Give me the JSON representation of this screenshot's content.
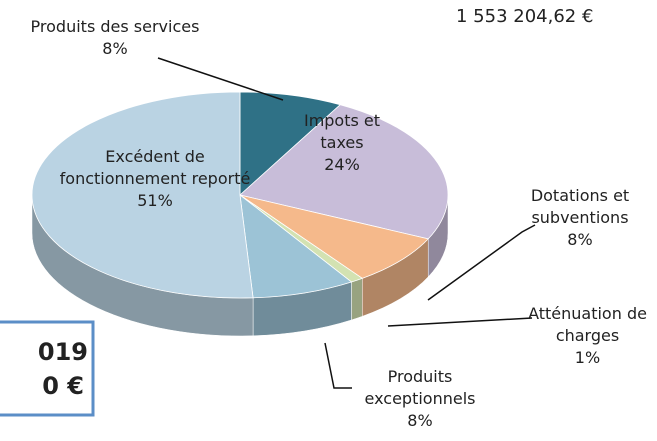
{
  "chart_data": {
    "type": "pie",
    "categories": [
      "Produits des services",
      "Impots et taxes",
      "Dotations et subventions",
      "Atténuation de charges",
      "Produits exceptionnels",
      "Excédent de fonctionnement reporté"
    ],
    "values": [
      8,
      24,
      8,
      1,
      8,
      51
    ],
    "value_labels": [
      "8%",
      "24%",
      "8%",
      "1%",
      "8%",
      "51%"
    ],
    "colors": [
      "#2f7186",
      "#c8bdd9",
      "#f5b98b",
      "#d3e2b2",
      "#9cc3d6",
      "#bad3e3"
    ],
    "annotations": [
      "1 553 204,62 €",
      "019",
      "0 €"
    ]
  }
}
